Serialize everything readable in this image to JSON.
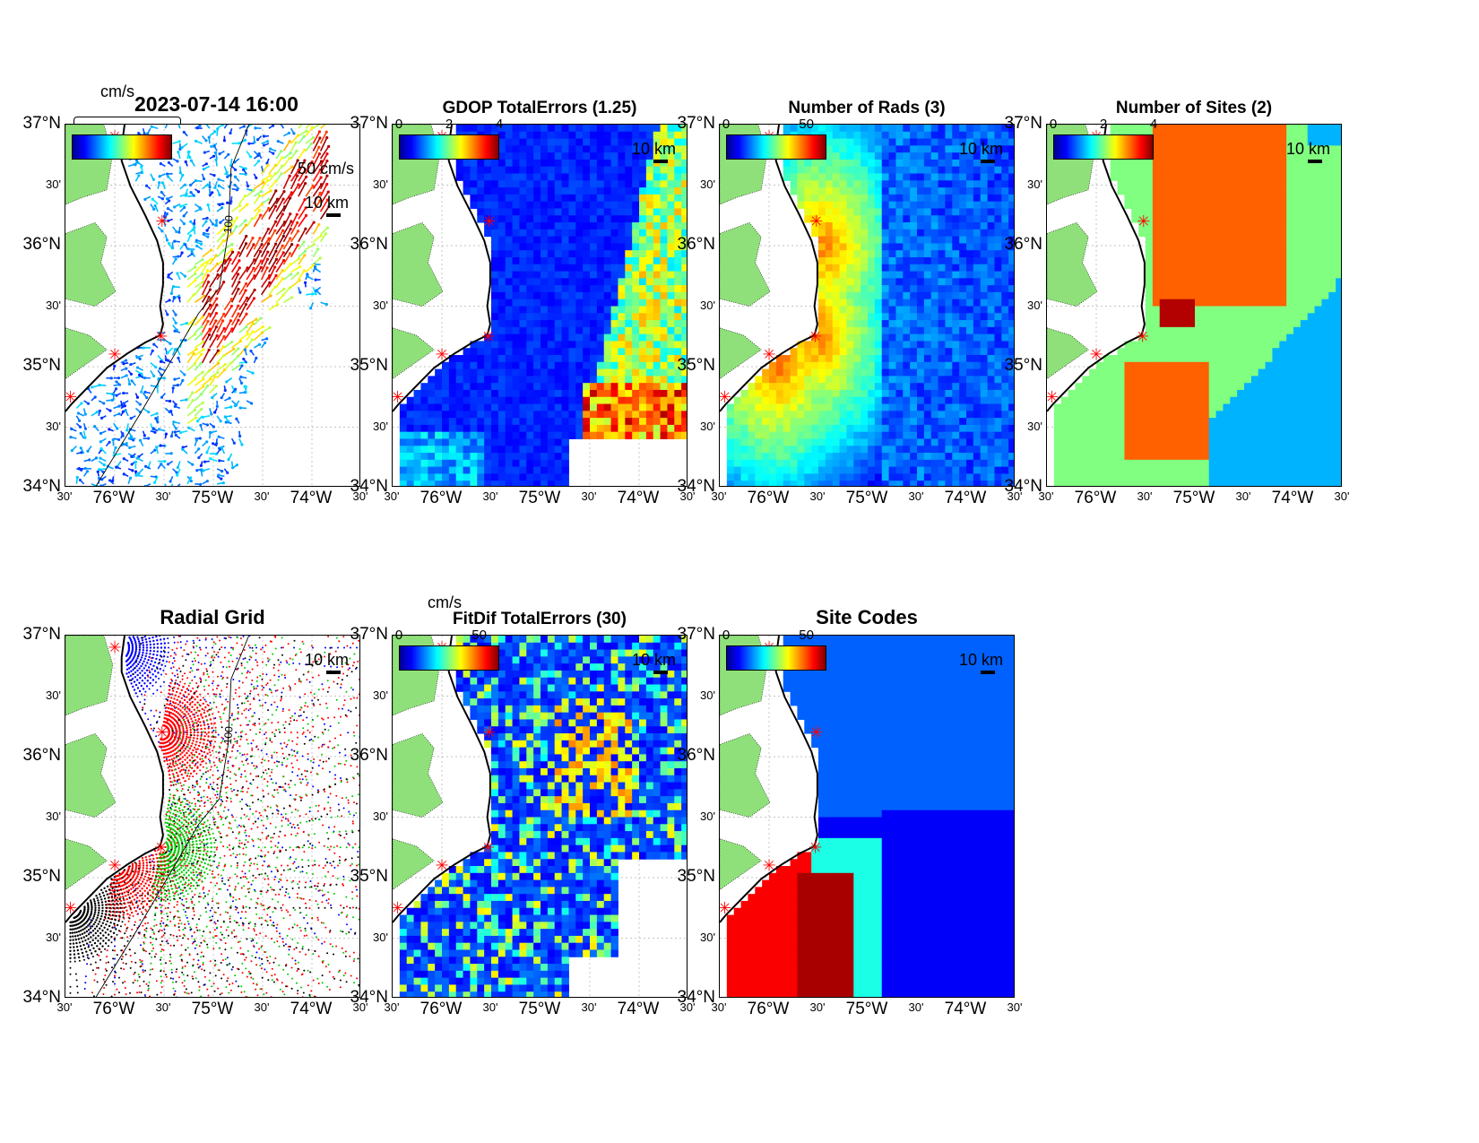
{
  "figure_timestamp": "2023-07-14 16:00",
  "panels": [
    {
      "id": "p1",
      "title": "",
      "colorbar": {
        "unit": "cm/s",
        "ticks": []
      },
      "scale_label": "10 km",
      "vector_label": "50 cm/s",
      "kind": "vectors",
      "contour_label": "100"
    },
    {
      "id": "p2",
      "title": "GDOP TotalErrors (1.25)",
      "colorbar": {
        "unit": "",
        "ticks": [
          "0",
          "2",
          "4"
        ]
      },
      "scale_label": "10 km",
      "kind": "gdop",
      "contour_label": "1.25"
    },
    {
      "id": "p3",
      "title": "Number of Rads (3)",
      "colorbar": {
        "unit": "",
        "ticks": [
          "0",
          "50"
        ]
      },
      "scale_label": "10 km",
      "kind": "rads",
      "contour_label": "3"
    },
    {
      "id": "p4",
      "title": "Number of Sites (2)",
      "colorbar": {
        "unit": "",
        "ticks": [
          "0",
          "2",
          "4"
        ]
      },
      "scale_label": "10 km",
      "kind": "sites",
      "contour_label": "2"
    },
    {
      "id": "p5",
      "title": "Radial Grid",
      "colorbar": null,
      "scale_label": "10 km",
      "kind": "radial",
      "contour_label": "100"
    },
    {
      "id": "p6",
      "title": "FitDif TotalErrors (30)",
      "colorbar": {
        "unit": "cm/s",
        "ticks": [
          "0",
          "50"
        ]
      },
      "scale_label": "10 km",
      "kind": "fitdif",
      "contour_label": "30"
    },
    {
      "id": "p7",
      "title": "Site Codes",
      "colorbar": {
        "unit": "",
        "ticks": [
          "0",
          "50"
        ]
      },
      "scale_label": "10 km",
      "kind": "codes",
      "contour_label": ""
    }
  ],
  "axes": {
    "lat_major": [
      "37°N",
      "36°N",
      "35°N",
      "34°N"
    ],
    "lat_minor": "30'",
    "lon_major": [
      "76°W",
      "75°W",
      "74°W"
    ],
    "lon_minor": "30'"
  },
  "colors": {
    "land": "#8fe07a",
    "coast": "#000000",
    "site_marker": "#ff0000",
    "grid": "#b0b0b0"
  },
  "map_extent": {
    "lon_min": -76.5,
    "lon_max": -73.5,
    "lat_min": 34.0,
    "lat_max": 37.0
  },
  "radar_sites": [
    {
      "lon": -76.0,
      "lat": 36.9
    },
    {
      "lon": -75.52,
      "lat": 36.2
    },
    {
      "lon": -75.53,
      "lat": 35.25
    },
    {
      "lon": -76.0,
      "lat": 35.1
    },
    {
      "lon": -76.45,
      "lat": 34.75
    }
  ]
}
